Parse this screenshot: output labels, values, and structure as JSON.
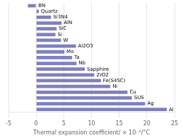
{
  "chart_data": {
    "type": "bar",
    "orientation": "horizontal",
    "categories": [
      "Al",
      "Ag",
      "SUS",
      "Cu",
      "Ni",
      "Fe(S45C)",
      "ZrO2",
      "Sapphire",
      "Nb",
      "Ta",
      "Mo",
      "Al2O3",
      "W",
      "Si",
      "SiC",
      "AlN",
      "Si3N4",
      "Quartz",
      "BN"
    ],
    "values": [
      23.6,
      19.7,
      17.3,
      16.5,
      13.4,
      11.7,
      10.5,
      8.8,
      7.3,
      6.5,
      5.1,
      7.2,
      4.5,
      3.5,
      3.7,
      4.6,
      2.7,
      0.5,
      -1.5
    ],
    "color": "#8080c0",
    "xlabel": "Thermal expansion coefficient/ × 10⁻⁶/°C",
    "xlim": [
      -5,
      25
    ],
    "xticks": [
      -5,
      0,
      5,
      10,
      15,
      20,
      25
    ],
    "grid": true,
    "tick_labels": "x"
  }
}
